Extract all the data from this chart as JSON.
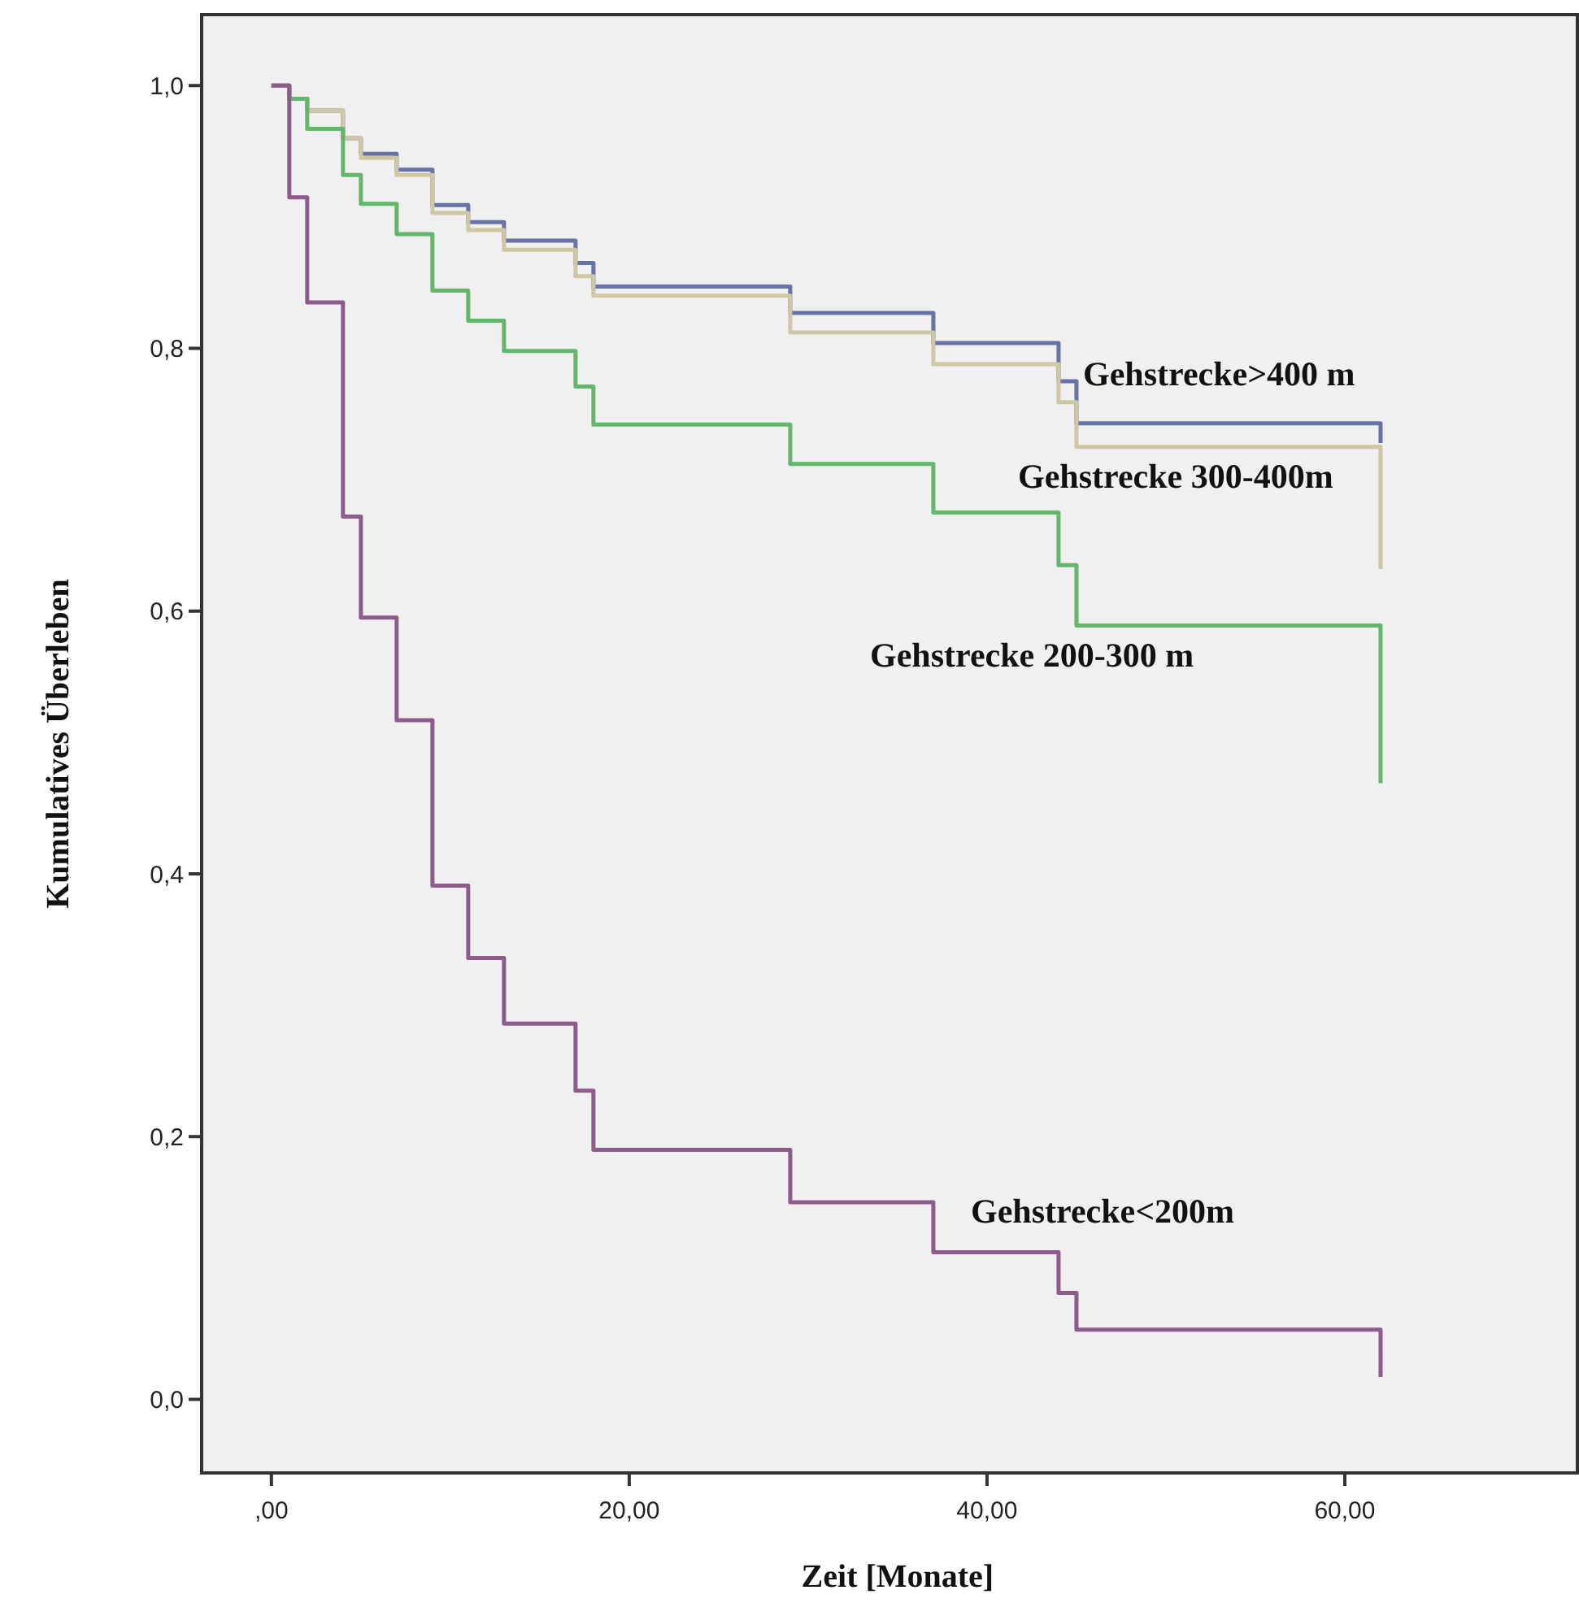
{
  "chart_data": {
    "type": "step",
    "xlabel": "Zeit  [Monate]",
    "ylabel": "Kumulatives  Überleben",
    "xlim": [
      -3.9,
      73
    ],
    "ylim": [
      -0.056,
      1.054
    ],
    "xticks": [
      {
        "value": 0,
        "label": ",00"
      },
      {
        "value": 20,
        "label": "20,00"
      },
      {
        "value": 40,
        "label": "40,00"
      },
      {
        "value": 60,
        "label": "60,00"
      }
    ],
    "yticks": [
      {
        "value": 0,
        "label": "0,0"
      },
      {
        "value": 0.2,
        "label": "0,2"
      },
      {
        "value": 0.4,
        "label": "0,4"
      },
      {
        "value": 0.6,
        "label": "0,6"
      },
      {
        "value": 0.8,
        "label": "0,8"
      },
      {
        "value": 1,
        "label": "1,0"
      }
    ],
    "grid": false,
    "marker": "none",
    "line_style": "solid",
    "series": [
      {
        "name": "Gehstrecke>400 m",
        "color": "#6673a8",
        "x": [
          0,
          1,
          2,
          4,
          5,
          7,
          9,
          11,
          13,
          17,
          18,
          29,
          37,
          44,
          45,
          62
        ],
        "values": [
          1,
          0.99,
          0.981,
          0.96,
          0.948,
          0.936,
          0.909,
          0.896,
          0.882,
          0.865,
          0.847,
          0.827,
          0.804,
          0.775,
          0.743,
          0.728
        ]
      },
      {
        "name": "Gehstrecke 300-400m",
        "color": "#cfc6a2",
        "x": [
          0,
          1,
          2,
          4,
          5,
          7,
          9,
          11,
          13,
          17,
          18,
          29,
          37,
          44,
          45,
          62
        ],
        "values": [
          1,
          0.99,
          0.981,
          0.96,
          0.945,
          0.932,
          0.903,
          0.89,
          0.875,
          0.855,
          0.84,
          0.812,
          0.788,
          0.759,
          0.725,
          0.632
        ]
      },
      {
        "name": "Gehstrecke 200-300 m",
        "color": "#62b86a",
        "x": [
          0,
          1,
          2,
          4,
          5,
          7,
          9,
          11,
          13,
          17,
          18,
          29,
          37,
          44,
          45,
          62
        ],
        "values": [
          1,
          0.99,
          0.967,
          0.932,
          0.91,
          0.887,
          0.844,
          0.821,
          0.798,
          0.771,
          0.742,
          0.712,
          0.675,
          0.635,
          0.589,
          0.469
        ]
      },
      {
        "name": "Gehstrecke<200m",
        "color": "#8f5a8c",
        "x": [
          0,
          1,
          2,
          4,
          5,
          7,
          9,
          11,
          13,
          17,
          18,
          29,
          37,
          44,
          45,
          62
        ],
        "values": [
          1,
          0.915,
          0.835,
          0.672,
          0.595,
          0.517,
          0.391,
          0.336,
          0.286,
          0.235,
          0.19,
          0.15,
          0.112,
          0.081,
          0.053,
          0.017
        ]
      }
    ]
  }
}
